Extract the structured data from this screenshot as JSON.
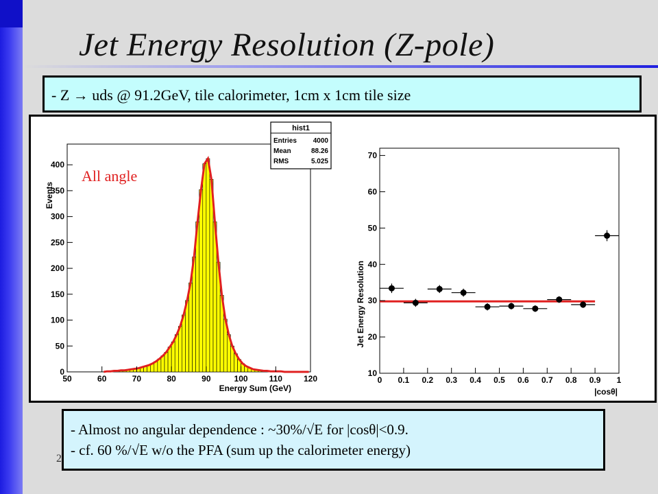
{
  "slide": {
    "title": "Jet Energy Resolution (Z-pole)",
    "info": "- Z → uds @ 91.2GeV, tile calorimeter, 1cm x 1cm tile size",
    "notes": [
      "- Almost no angular dependence : ~30%/√E for |cosθ|<0.9.",
      "- cf.  60 %/√E w/o the PFA (sum up the calorimeter energy)"
    ],
    "page_number": "2",
    "colors": {
      "accent_blue": "#2020e0",
      "info_box_bg": "#c4fdfd",
      "fit_red": "#e02020",
      "hist_yellow": "#ffff00"
    }
  },
  "chart_data": [
    {
      "type": "bar",
      "xlabel": "Energy Sum (GeV)",
      "ylabel": "Events",
      "xlim": [
        50,
        120
      ],
      "ylim": [
        0,
        440
      ],
      "xticks": [
        50,
        60,
        70,
        80,
        90,
        100,
        110,
        120
      ],
      "yticks": [
        0,
        50,
        100,
        150,
        200,
        250,
        300,
        350,
        400
      ],
      "annotation": "All angle",
      "stats": {
        "title": "hist1",
        "entries_label": "Entries",
        "entries": "4000",
        "mean_label": "Mean",
        "mean": "88.26",
        "rms_label": "RMS",
        "rms": "5.025"
      },
      "bin_width": 1,
      "bins_x": [
        60,
        61,
        62,
        63,
        64,
        65,
        66,
        67,
        68,
        69,
        70,
        71,
        72,
        73,
        74,
        75,
        76,
        77,
        78,
        79,
        80,
        81,
        82,
        83,
        84,
        85,
        86,
        87,
        88,
        89,
        90,
        91,
        92,
        93,
        94,
        95,
        96,
        97,
        98,
        99,
        100,
        101,
        102,
        103,
        104,
        105,
        106,
        107,
        108,
        109,
        110,
        111,
        112,
        113,
        114,
        115,
        116,
        117,
        118,
        119
      ],
      "bins_y": [
        0,
        1,
        1,
        2,
        2,
        3,
        3,
        4,
        5,
        6,
        7,
        9,
        11,
        13,
        16,
        20,
        25,
        31,
        38,
        48,
        58,
        72,
        88,
        110,
        138,
        172,
        222,
        290,
        352,
        402,
        412,
        372,
        290,
        212,
        148,
        102,
        72,
        50,
        35,
        24,
        16,
        11,
        8,
        5,
        4,
        3,
        2,
        2,
        1,
        1,
        1,
        1,
        0,
        0,
        0,
        0,
        0,
        0,
        0,
        0
      ],
      "fit_color": "#e02020"
    },
    {
      "type": "scatter",
      "xlabel": "|cosθ|",
      "ylabel": "Jet Energy Resolution",
      "xlim": [
        0,
        1
      ],
      "ylim": [
        10,
        72
      ],
      "xticks": [
        0,
        0.1,
        0.2,
        0.3,
        0.4,
        0.5,
        0.6,
        0.7,
        0.8,
        0.9,
        1
      ],
      "yticks": [
        10,
        20,
        30,
        40,
        50,
        60,
        70
      ],
      "x": [
        0.05,
        0.15,
        0.25,
        0.35,
        0.45,
        0.55,
        0.65,
        0.75,
        0.85,
        0.95
      ],
      "y": [
        33.4,
        29.4,
        33.2,
        32.2,
        28.3,
        28.5,
        27.8,
        30.3,
        28.9,
        47.9
      ],
      "yerr": [
        1.3,
        1.1,
        1.1,
        1.1,
        1.0,
        0.9,
        0.9,
        0.9,
        0.9,
        1.5
      ],
      "xerr": 0.05,
      "fit_line": {
        "x": [
          0,
          0.9
        ],
        "y": [
          29.8,
          29.8
        ],
        "color": "#e02020"
      }
    }
  ]
}
